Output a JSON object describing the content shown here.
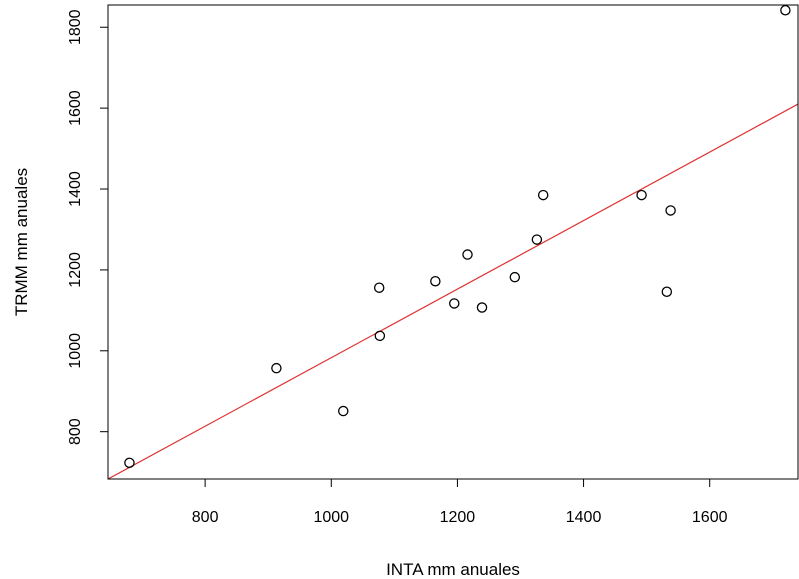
{
  "chart_data": {
    "type": "scatter",
    "xlabel": "INTA mm anuales",
    "ylabel": "TRMM mm anuales",
    "xlim": [
      646,
      1740
    ],
    "ylim": [
      683,
      1855
    ],
    "x_ticks": [
      "800",
      "1000",
      "1200",
      "1400",
      "1600"
    ],
    "y_ticks": [
      "800",
      "1000",
      "1200",
      "1400",
      "1600",
      "1800"
    ],
    "grid": false,
    "points": [
      {
        "x": 680,
        "y": 723
      },
      {
        "x": 913,
        "y": 957
      },
      {
        "x": 1019,
        "y": 851
      },
      {
        "x": 1076,
        "y": 1156
      },
      {
        "x": 1077,
        "y": 1037
      },
      {
        "x": 1165,
        "y": 1172
      },
      {
        "x": 1195,
        "y": 1117
      },
      {
        "x": 1216,
        "y": 1238
      },
      {
        "x": 1239,
        "y": 1107
      },
      {
        "x": 1291,
        "y": 1182
      },
      {
        "x": 1326,
        "y": 1275
      },
      {
        "x": 1336,
        "y": 1385
      },
      {
        "x": 1492,
        "y": 1385
      },
      {
        "x": 1532,
        "y": 1146
      },
      {
        "x": 1538,
        "y": 1347
      },
      {
        "x": 1720,
        "y": 1842
      }
    ],
    "fit_line": {
      "x": [
        646,
        1740
      ],
      "y": [
        683,
        1610
      ]
    },
    "colors": {
      "points": "#000000",
      "fit_line": "#e03030"
    }
  }
}
